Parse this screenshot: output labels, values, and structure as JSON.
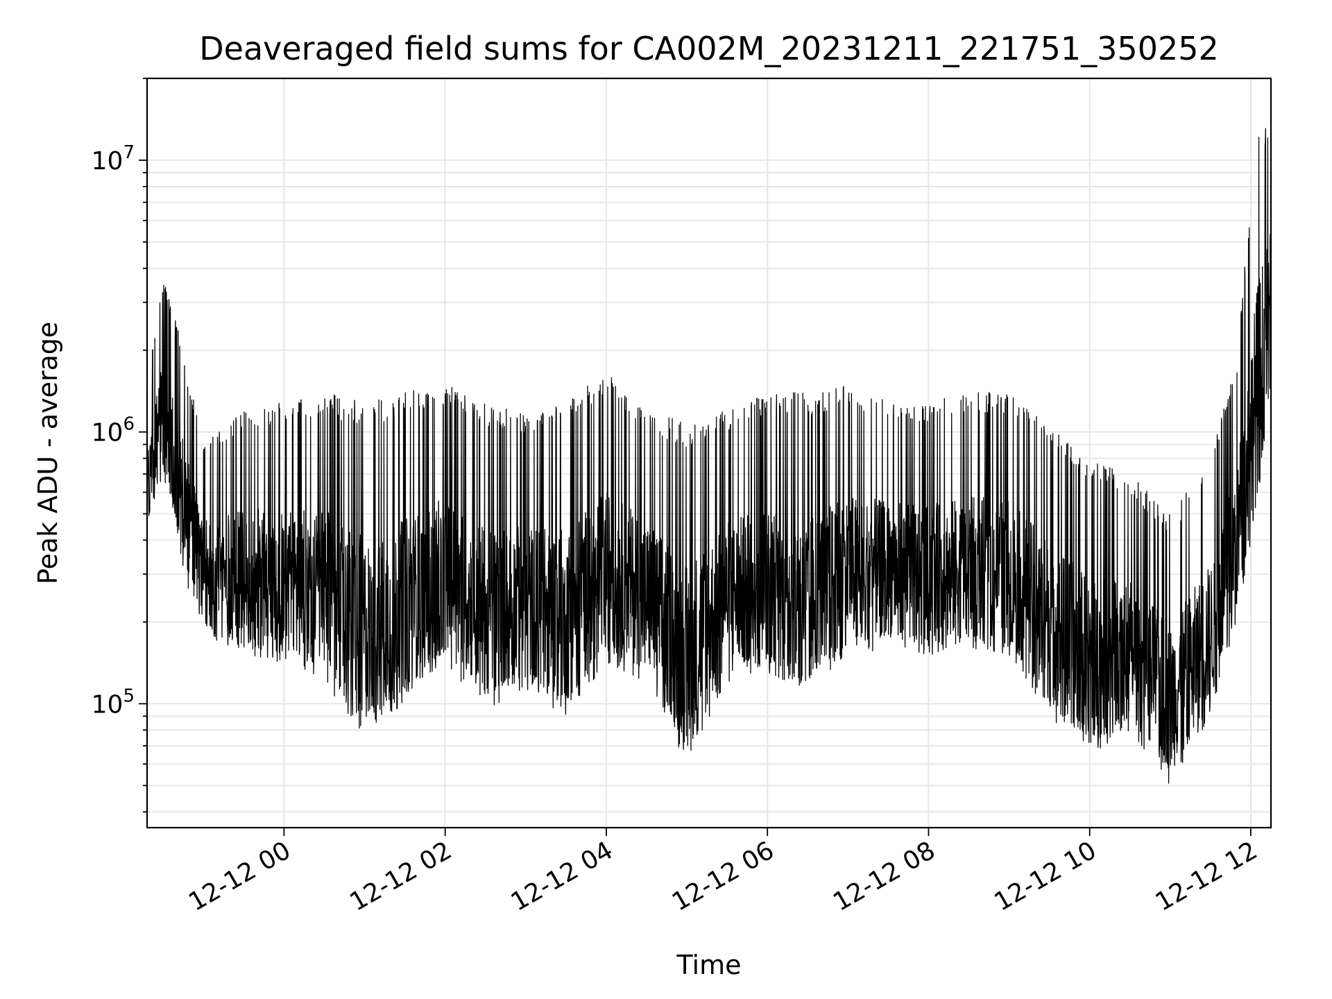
{
  "chart_data": {
    "type": "line",
    "title": "Deaveraged field sums for CA002M_20231211_221751_350252",
    "xlabel": "Time",
    "ylabel": "Peak ADU - average",
    "y_scale": "log",
    "ylim": [
      35000,
      20000000
    ],
    "xlim": [
      "2023-12-11 22:18",
      "2023-12-12 12:15"
    ],
    "grid": true,
    "line_color": "#000000",
    "grid_color": "#e6e6e6",
    "x_ticks": [
      {
        "t": "2023-12-12 00:00",
        "label": "12-12 00"
      },
      {
        "t": "2023-12-12 02:00",
        "label": "12-12 02"
      },
      {
        "t": "2023-12-12 04:00",
        "label": "12-12 04"
      },
      {
        "t": "2023-12-12 06:00",
        "label": "12-12 06"
      },
      {
        "t": "2023-12-12 08:00",
        "label": "12-12 08"
      },
      {
        "t": "2023-12-12 10:00",
        "label": "12-12 10"
      },
      {
        "t": "2023-12-12 12:00",
        "label": "12-12 12"
      }
    ],
    "y_ticks": [
      {
        "value": 100000,
        "base": "10",
        "exp": "5"
      },
      {
        "value": 1000000,
        "base": "10",
        "exp": "6"
      },
      {
        "value": 10000000,
        "base": "10",
        "exp": "7"
      }
    ],
    "series": [
      {
        "envelope": [
          {
            "t": "2023-12-11 22:18",
            "low": 450000,
            "high": 1500000
          },
          {
            "t": "2023-12-11 22:30",
            "low": 700000,
            "high": 3800000
          },
          {
            "t": "2023-12-11 22:45",
            "low": 300000,
            "high": 2000000
          },
          {
            "t": "2023-12-11 23:00",
            "low": 180000,
            "high": 900000
          },
          {
            "t": "2023-12-11 23:30",
            "low": 150000,
            "high": 1200000
          },
          {
            "t": "2023-12-12 00:00",
            "low": 140000,
            "high": 1300000
          },
          {
            "t": "2023-12-12 00:30",
            "low": 120000,
            "high": 1400000
          },
          {
            "t": "2023-12-12 01:00",
            "low": 75000,
            "high": 1300000
          },
          {
            "t": "2023-12-12 01:30",
            "low": 100000,
            "high": 1400000
          },
          {
            "t": "2023-12-12 02:00",
            "low": 140000,
            "high": 1500000
          },
          {
            "t": "2023-12-12 02:30",
            "low": 95000,
            "high": 1300000
          },
          {
            "t": "2023-12-12 03:00",
            "low": 110000,
            "high": 1200000
          },
          {
            "t": "2023-12-12 03:30",
            "low": 90000,
            "high": 1300000
          },
          {
            "t": "2023-12-12 04:00",
            "low": 140000,
            "high": 1700000
          },
          {
            "t": "2023-12-12 04:30",
            "low": 120000,
            "high": 1200000
          },
          {
            "t": "2023-12-12 05:00",
            "low": 60000,
            "high": 1100000
          },
          {
            "t": "2023-12-12 05:30",
            "low": 120000,
            "high": 1200000
          },
          {
            "t": "2023-12-12 06:00",
            "low": 130000,
            "high": 1400000
          },
          {
            "t": "2023-12-12 06:30",
            "low": 110000,
            "high": 1400000
          },
          {
            "t": "2023-12-12 07:00",
            "low": 150000,
            "high": 1500000
          },
          {
            "t": "2023-12-12 07:30",
            "low": 160000,
            "high": 1300000
          },
          {
            "t": "2023-12-12 08:00",
            "low": 150000,
            "high": 1300000
          },
          {
            "t": "2023-12-12 08:30",
            "low": 160000,
            "high": 1400000
          },
          {
            "t": "2023-12-12 09:00",
            "low": 150000,
            "high": 1400000
          },
          {
            "t": "2023-12-12 09:30",
            "low": 90000,
            "high": 1100000
          },
          {
            "t": "2023-12-12 10:00",
            "low": 65000,
            "high": 800000
          },
          {
            "t": "2023-12-12 10:30",
            "low": 80000,
            "high": 700000
          },
          {
            "t": "2023-12-12 11:00",
            "low": 50000,
            "high": 500000
          },
          {
            "t": "2023-12-12 11:30",
            "low": 90000,
            "high": 800000
          },
          {
            "t": "2023-12-12 11:50",
            "low": 200000,
            "high": 2000000
          },
          {
            "t": "2023-12-12 12:05",
            "low": 500000,
            "high": 14000000
          },
          {
            "t": "2023-12-12 12:15",
            "low": 1500000,
            "high": 14000000
          }
        ]
      }
    ]
  }
}
